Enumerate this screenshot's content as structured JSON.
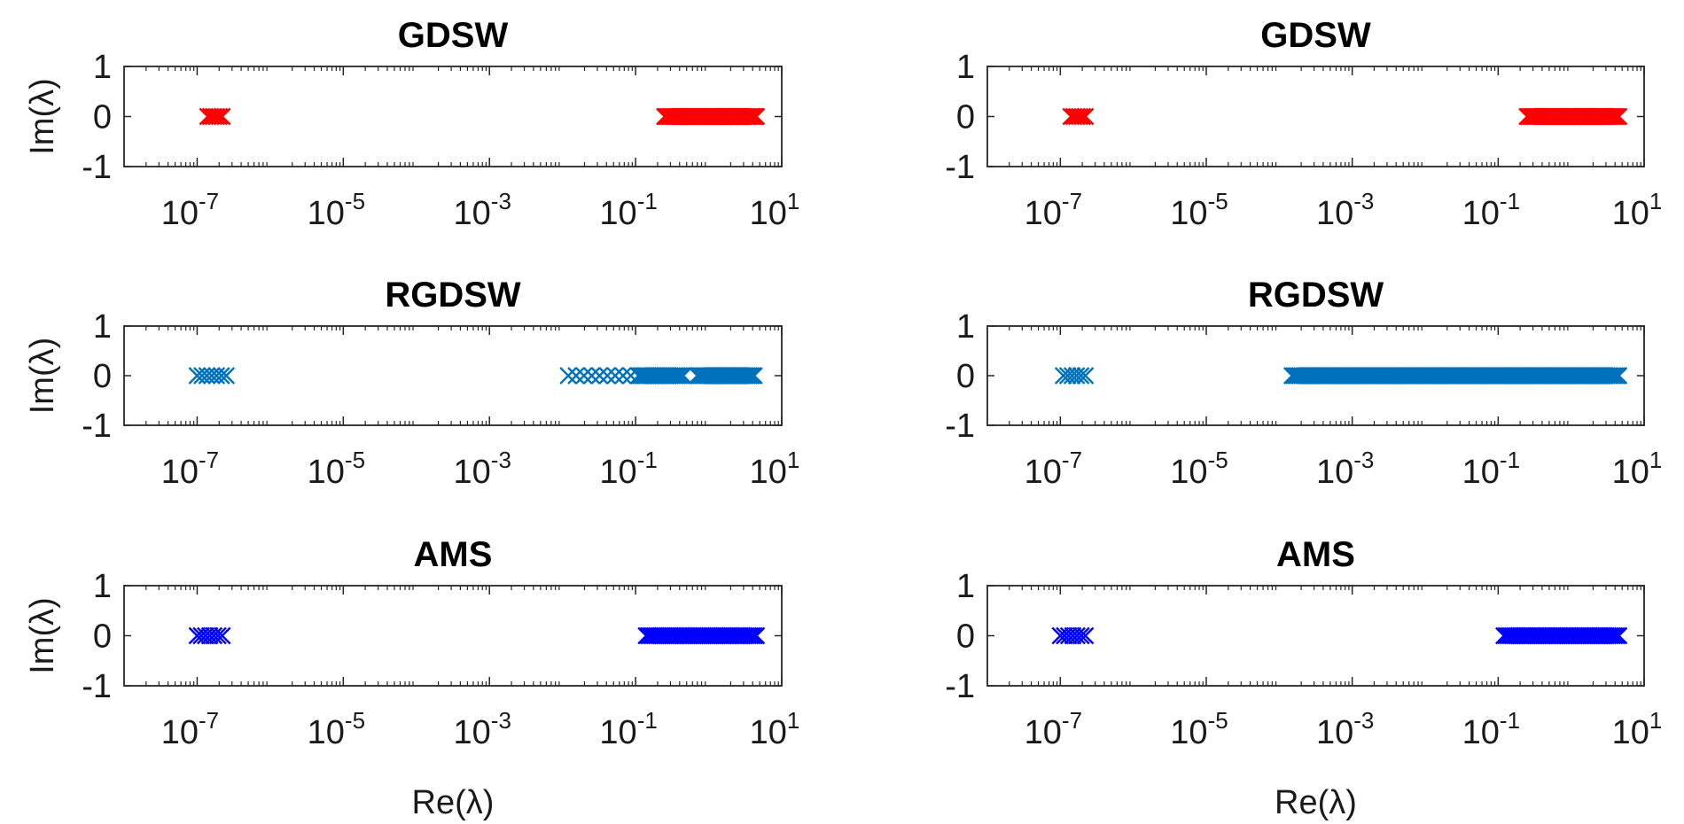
{
  "chart_data": [
    {
      "type": "scatter",
      "title": "GDSW",
      "ylabel": "Im(λ)",
      "xlabel": "",
      "xscale": "log",
      "xlim": [
        1e-08,
        10
      ],
      "ylim": [
        -1,
        1
      ],
      "xticks": [
        "10^-7",
        "10^-5",
        "10^-3",
        "10^-1",
        "10^1"
      ],
      "yticks": [
        "1",
        "0",
        "-1"
      ],
      "marker": "x",
      "color": "#ff0000",
      "grid": false,
      "series": [
        {
          "clusters": [
            {
              "from": 1.4e-07,
              "to": 2.2e-07,
              "count": 6,
              "im": 0
            },
            {
              "from": 0.25,
              "to": 4.5,
              "count": 60,
              "im": 0
            }
          ]
        }
      ]
    },
    {
      "type": "scatter",
      "title": "GDSW",
      "ylabel": "",
      "xlabel": "",
      "xscale": "log",
      "xlim": [
        1e-08,
        10
      ],
      "ylim": [
        -1,
        1
      ],
      "xticks": [
        "10^-7",
        "10^-5",
        "10^-3",
        "10^-1",
        "10^1"
      ],
      "yticks": [
        "1",
        "0",
        "-1"
      ],
      "marker": "x",
      "color": "#ff0000",
      "grid": false,
      "series": [
        {
          "clusters": [
            {
              "from": 1.4e-07,
              "to": 2.2e-07,
              "count": 6,
              "im": 0
            },
            {
              "from": 0.25,
              "to": 4.5,
              "count": 60,
              "im": 0
            }
          ]
        }
      ]
    },
    {
      "type": "scatter",
      "title": "RGDSW",
      "ylabel": "Im(λ)",
      "xlabel": "",
      "xscale": "log",
      "xlim": [
        1e-08,
        10
      ],
      "ylim": [
        -1,
        1
      ],
      "xticks": [
        "10^-7",
        "10^-5",
        "10^-3",
        "10^-1",
        "10^1"
      ],
      "yticks": [
        "1",
        "0",
        "-1"
      ],
      "marker": "x",
      "color": "#0072bd",
      "grid": false,
      "series": [
        {
          "clusters": [
            {
              "from": 1e-07,
              "to": 2.5e-07,
              "count": 7,
              "im": 0
            },
            {
              "from": 0.012,
              "to": 0.11,
              "count": 10,
              "im": 0
            },
            {
              "from": 0.11,
              "to": 0.45,
              "count": 25,
              "im": 0
            },
            {
              "from": 0.7,
              "to": 4.2,
              "count": 35,
              "im": 0
            }
          ]
        }
      ]
    },
    {
      "type": "scatter",
      "title": "RGDSW",
      "ylabel": "",
      "xlabel": "",
      "xscale": "log",
      "xlim": [
        1e-08,
        10
      ],
      "ylim": [
        -1,
        1
      ],
      "xticks": [
        "10^-7",
        "10^-5",
        "10^-3",
        "10^-1",
        "10^1"
      ],
      "yticks": [
        "1",
        "0",
        "-1"
      ],
      "marker": "x",
      "color": "#0072bd",
      "grid": false,
      "series": [
        {
          "clusters": [
            {
              "from": 1.1e-07,
              "to": 2.2e-07,
              "count": 6,
              "im": 0
            },
            {
              "from": 0.00015,
              "to": 4.5,
              "count": 170,
              "im": 0
            }
          ]
        }
      ]
    },
    {
      "type": "scatter",
      "title": "AMS",
      "ylabel": "Im(λ)",
      "xlabel": "Re(λ)",
      "xscale": "log",
      "xlim": [
        1e-08,
        10
      ],
      "ylim": [
        -1,
        1
      ],
      "xticks": [
        "10^-7",
        "10^-5",
        "10^-3",
        "10^-1",
        "10^1"
      ],
      "yticks": [
        "1",
        "0",
        "-1"
      ],
      "marker": "x",
      "color": "#0000ff",
      "grid": false,
      "series": [
        {
          "clusters": [
            {
              "from": 1e-07,
              "to": 2.2e-07,
              "count": 7,
              "im": 0
            },
            {
              "from": 0.14,
              "to": 4.5,
              "count": 55,
              "im": 0
            }
          ]
        }
      ]
    },
    {
      "type": "scatter",
      "title": "AMS",
      "ylabel": "",
      "xlabel": "Re(λ)",
      "xscale": "log",
      "xlim": [
        1e-08,
        10
      ],
      "ylim": [
        -1,
        1
      ],
      "xticks": [
        "10^-7",
        "10^-5",
        "10^-3",
        "10^-1",
        "10^1"
      ],
      "yticks": [
        "1",
        "0",
        "-1"
      ],
      "marker": "x",
      "color": "#0000ff",
      "grid": false,
      "series": [
        {
          "clusters": [
            {
              "from": 1e-07,
              "to": 2.2e-07,
              "count": 7,
              "im": 0
            },
            {
              "from": 0.12,
              "to": 4.5,
              "count": 55,
              "im": 0
            }
          ]
        }
      ]
    }
  ]
}
